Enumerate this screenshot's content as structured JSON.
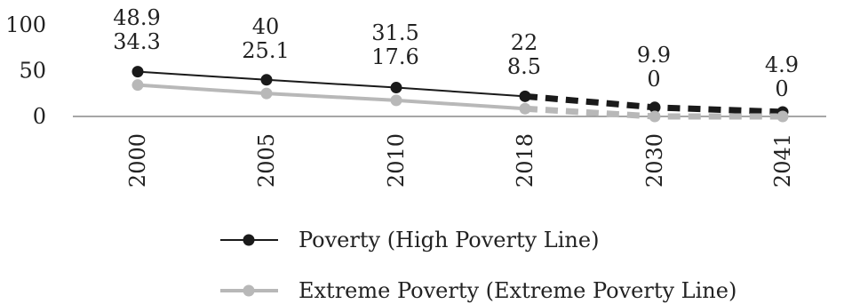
{
  "chart_data": {
    "type": "line",
    "title": "",
    "xlabel": "",
    "ylabel": "",
    "x": [
      "2000",
      "2005",
      "2010",
      "2018",
      "2030",
      "2041"
    ],
    "ylim": [
      0,
      100
    ],
    "yticks": [
      "0",
      "50",
      "100"
    ],
    "grid": false,
    "legend_position": "bottom",
    "projection_starts_after": "2018",
    "series": [
      {
        "name": "Poverty (High Poverty Line)",
        "values": [
          48.9,
          40,
          31.5,
          22,
          9.9,
          4.9
        ],
        "labels": [
          "48.9",
          "40",
          "31.5",
          "22",
          "9.9",
          "4.9"
        ],
        "color": "#1a1a1a"
      },
      {
        "name": "Extreme Poverty (Extreme Poverty Line)",
        "values": [
          34.3,
          25.1,
          17.6,
          8.5,
          0,
          0
        ],
        "labels": [
          "34.3",
          "25.1",
          "17.6",
          "8.5",
          "0",
          "0"
        ],
        "color": "#b8b8b8"
      }
    ]
  }
}
